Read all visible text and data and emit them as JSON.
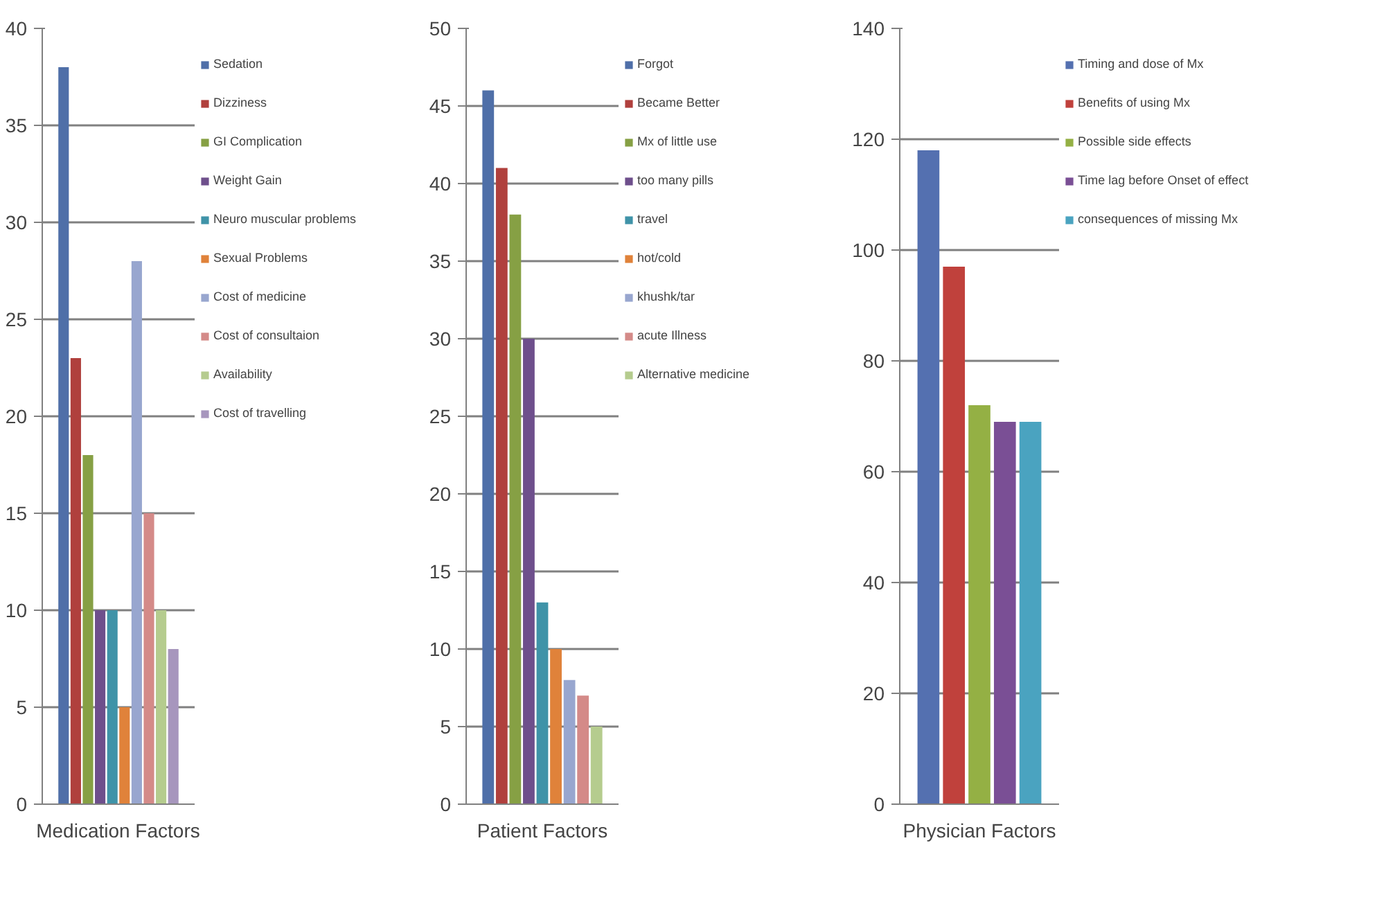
{
  "chart_data": [
    {
      "type": "bar",
      "categories": [
        "Medication Factors"
      ],
      "ylim": [
        0,
        40
      ],
      "yticks": [
        0,
        5,
        10,
        15,
        20,
        25,
        30,
        35,
        40
      ],
      "grid": "y",
      "legend": "right",
      "series": [
        {
          "name": "Sedation",
          "color": "#4f6fa8",
          "values": [
            38
          ]
        },
        {
          "name": "Dizziness",
          "color": "#b0403d",
          "values": [
            23
          ]
        },
        {
          "name": "GI Complication",
          "color": "#86a044",
          "values": [
            18
          ]
        },
        {
          "name": "Weight Gain",
          "color": "#6e4f8c",
          "values": [
            10
          ]
        },
        {
          "name": "Neuro muscular problems",
          "color": "#3f93a8",
          "values": [
            10
          ]
        },
        {
          "name": "Sexual Problems",
          "color": "#e0823a",
          "values": [
            5
          ]
        },
        {
          "name": "Cost of medicine",
          "color": "#98a6cf",
          "values": [
            28
          ]
        },
        {
          "name": "Cost of consultaion",
          "color": "#d48a88",
          "values": [
            15
          ]
        },
        {
          "name": "Availability",
          "color": "#b5cc8e",
          "values": [
            10
          ]
        },
        {
          "name": "Cost of travelling",
          "color": "#a796bd",
          "values": [
            8
          ]
        }
      ]
    },
    {
      "type": "bar",
      "categories": [
        "Patient Factors"
      ],
      "ylim": [
        0,
        50
      ],
      "yticks": [
        0,
        5,
        10,
        15,
        20,
        25,
        30,
        35,
        40,
        45,
        50
      ],
      "grid": "y",
      "legend": "right",
      "series": [
        {
          "name": "Forgot",
          "color": "#4f6fa8",
          "values": [
            46
          ]
        },
        {
          "name": "Became Better",
          "color": "#b0403d",
          "values": [
            41
          ]
        },
        {
          "name": "Mx of little use",
          "color": "#86a044",
          "values": [
            38
          ]
        },
        {
          "name": "too many pills",
          "color": "#6e4f8c",
          "values": [
            30
          ]
        },
        {
          "name": "travel",
          "color": "#3f93a8",
          "values": [
            13
          ]
        },
        {
          "name": "hot/cold",
          "color": "#e0823a",
          "values": [
            10
          ]
        },
        {
          "name": "khushk/tar",
          "color": "#98a6cf",
          "values": [
            8
          ]
        },
        {
          "name": "acute Illness",
          "color": "#d48a88",
          "values": [
            7
          ]
        },
        {
          "name": "Alternative medicine",
          "color": "#b5cc8e",
          "values": [
            5
          ]
        }
      ]
    },
    {
      "type": "bar",
      "categories": [
        "Physician Factors"
      ],
      "ylim": [
        0,
        140
      ],
      "yticks": [
        0,
        20,
        40,
        60,
        80,
        100,
        120,
        140
      ],
      "grid": "y",
      "legend": "right",
      "series": [
        {
          "name": "Timing and dose of Mx",
          "color": "#5470b0",
          "values": [
            118
          ]
        },
        {
          "name": "Benefits of using Mx",
          "color": "#c0413c",
          "values": [
            97
          ]
        },
        {
          "name": "Possible side effects",
          "color": "#94b044",
          "values": [
            72
          ]
        },
        {
          "name": "Time lag before Onset of effect",
          "color": "#7a4f95",
          "values": [
            69
          ]
        },
        {
          "name": "consequences of missing Mx",
          "color": "#4aa3c0",
          "values": [
            69
          ]
        }
      ]
    }
  ]
}
